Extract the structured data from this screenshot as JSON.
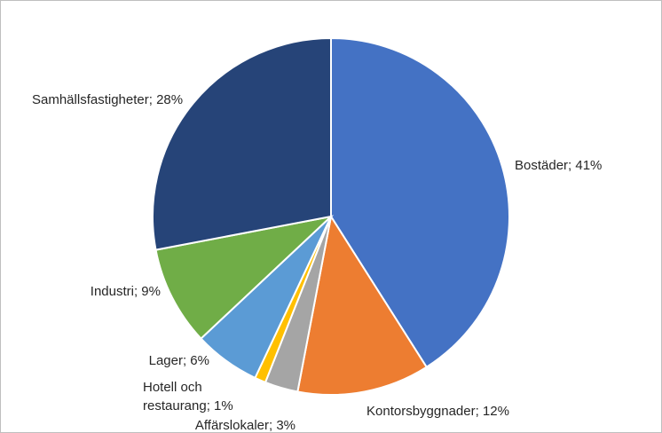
{
  "chart_data": {
    "type": "pie",
    "title": "",
    "legend": "none",
    "start_angle_deg": 0,
    "direction": "clockwise",
    "slices": [
      {
        "name": "Bostäder",
        "value": 41,
        "label": [
          "Bostäder; 41%"
        ],
        "color": "#4472C4"
      },
      {
        "name": "Kontorsbyggnader",
        "value": 12,
        "label": [
          "Kontorsbyggnader; 12%"
        ],
        "color": "#ED7D31"
      },
      {
        "name": "Affärslokaler",
        "value": 3,
        "label": [
          "Affärslokaler; 3%"
        ],
        "color": "#A5A5A5"
      },
      {
        "name": "Hotell och restaurang",
        "value": 1,
        "label": [
          "Hotell och",
          "restaurang; 1%"
        ],
        "color": "#FFC000"
      },
      {
        "name": "Lager",
        "value": 6,
        "label": [
          "Lager; 6%"
        ],
        "color": "#5B9BD5"
      },
      {
        "name": "Industri",
        "value": 9,
        "label": [
          "Industri; 9%"
        ],
        "color": "#70AD47"
      },
      {
        "name": "Samhällsfastigheter",
        "value": 28,
        "label": [
          "Samhällsfastigheter; 28%"
        ],
        "color": "#264478"
      }
    ]
  }
}
